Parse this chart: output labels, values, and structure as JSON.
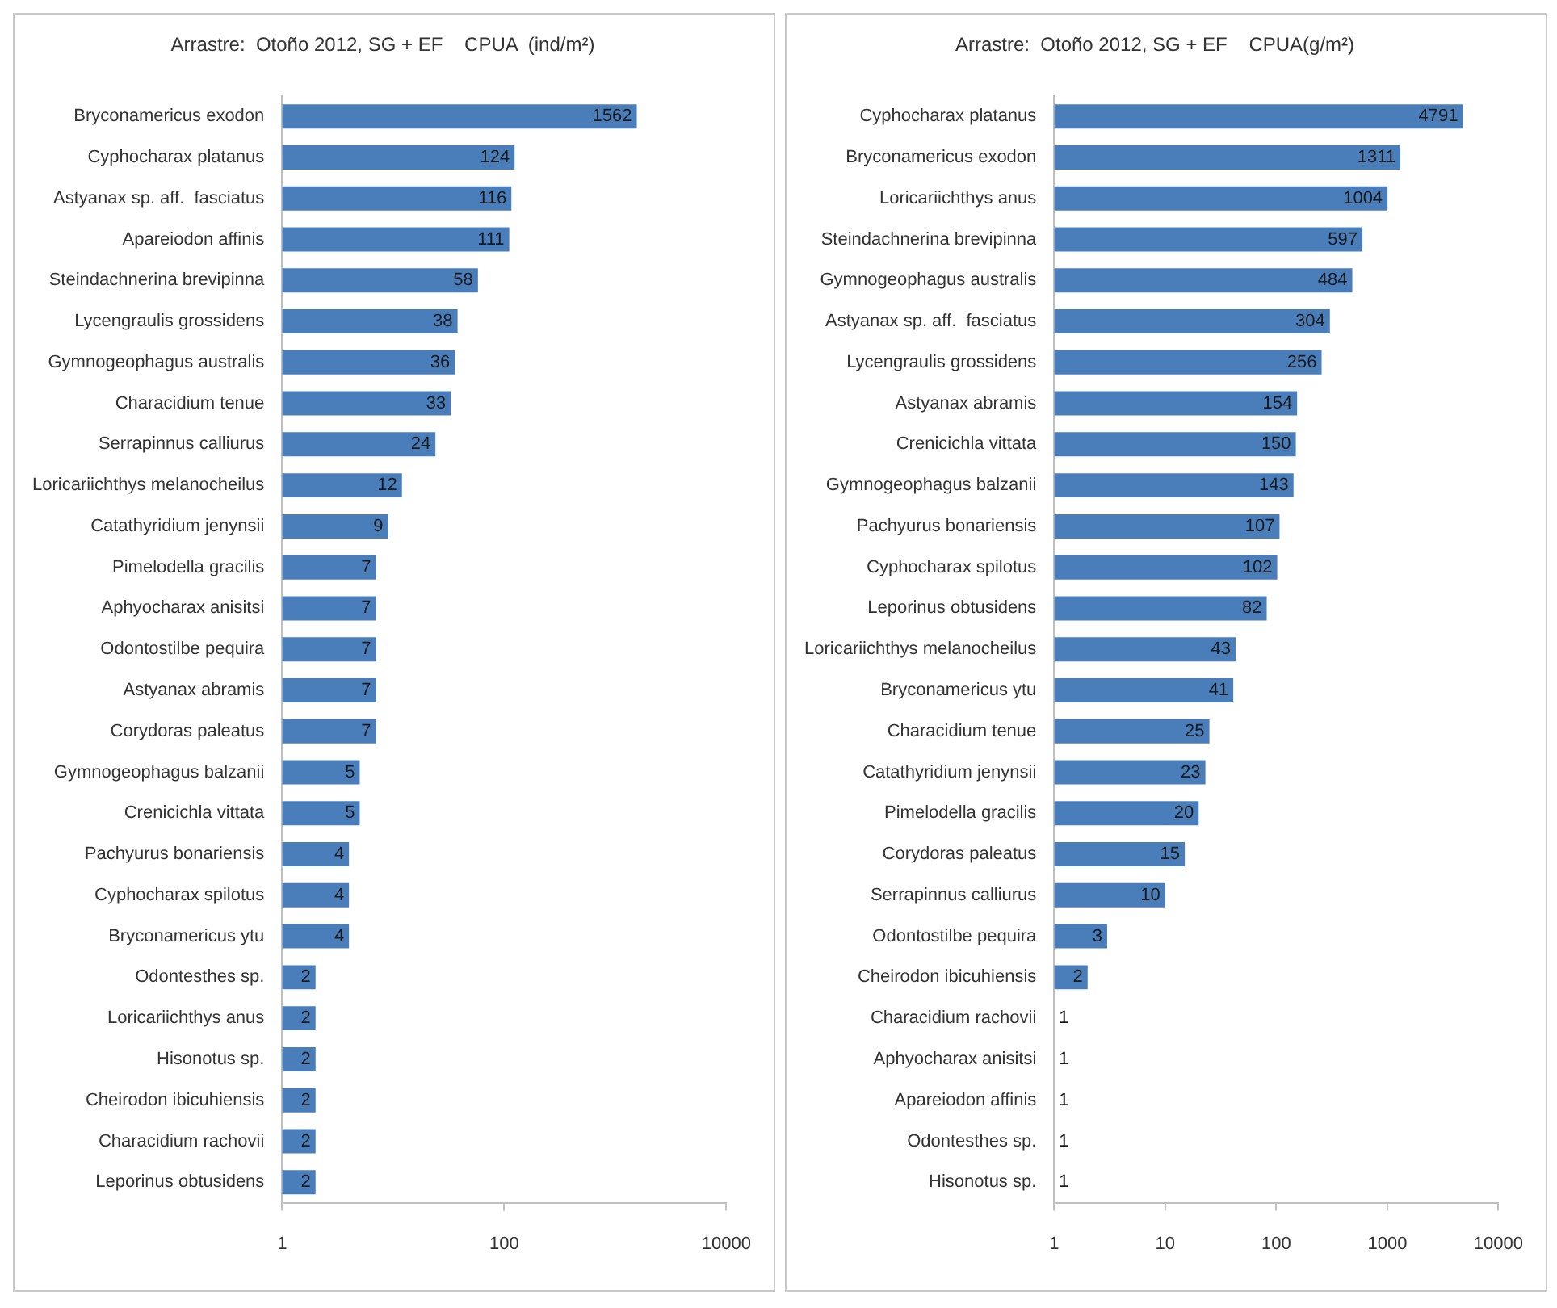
{
  "chart_data": [
    {
      "type": "bar",
      "orientation": "horizontal",
      "log": "x",
      "title": "Arrastre:  Otoño 2012, SG + EF    CPUA  (ind/m²)",
      "categories": [
        "Bryconamericus exodon",
        "Cyphocharax platanus",
        "Astyanax sp. aff.  fasciatus",
        "Apareiodon affinis",
        "Steindachnerina brevipinna",
        "Lycengraulis grossidens",
        "Gymnogeophagus australis",
        "Characidium tenue",
        "Serrapinnus calliurus",
        "Loricariichthys melanocheilus",
        "Catathyridium jenynsii",
        "Pimelodella gracilis",
        "Aphyocharax anisitsi",
        "Odontostilbe pequira",
        "Astyanax abramis",
        "Corydoras paleatus",
        "Gymnogeophagus balzanii",
        "Crenicichla vittata",
        "Pachyurus bonariensis",
        "Cyphocharax spilotus",
        "Bryconamericus ytu",
        "Odontesthes sp.",
        "Loricariichthys anus",
        "Hisonotus sp.",
        "Cheirodon ibicuhiensis",
        "Characidium rachovii",
        "Leporinus obtusidens"
      ],
      "values": [
        1562,
        124,
        116,
        111,
        58,
        38,
        36,
        33,
        24,
        12,
        9,
        7,
        7,
        7,
        7,
        7,
        5,
        5,
        4,
        4,
        4,
        2,
        2,
        2,
        2,
        2,
        2
      ],
      "color": "#4a7ebb",
      "xlim": [
        1,
        10000
      ],
      "xticks": [
        1,
        100,
        10000
      ],
      "data_labels": true
    },
    {
      "type": "bar",
      "orientation": "horizontal",
      "log": "x",
      "title": "Arrastre:  Otoño 2012, SG + EF    CPUA(g/m²)",
      "categories": [
        "Cyphocharax platanus",
        "Bryconamericus exodon",
        "Loricariichthys anus",
        "Steindachnerina brevipinna",
        "Gymnogeophagus australis",
        "Astyanax sp. aff.  fasciatus",
        "Lycengraulis grossidens",
        "Astyanax abramis",
        "Crenicichla vittata",
        "Gymnogeophagus balzanii",
        "Pachyurus bonariensis",
        "Cyphocharax spilotus",
        "Leporinus obtusidens",
        "Loricariichthys melanocheilus",
        "Bryconamericus ytu",
        "Characidium tenue",
        "Catathyridium jenynsii",
        "Pimelodella gracilis",
        "Corydoras paleatus",
        "Serrapinnus calliurus",
        "Odontostilbe pequira",
        "Cheirodon ibicuhiensis",
        "Characidium rachovii",
        "Aphyocharax anisitsi",
        "Apareiodon affinis",
        "Odontesthes sp.",
        "Hisonotus sp."
      ],
      "values": [
        4791,
        1311,
        1004,
        597,
        484,
        304,
        256,
        154,
        150,
        143,
        107,
        102,
        82,
        43,
        41,
        25,
        23,
        20,
        15,
        10,
        3,
        2,
        1,
        1,
        1,
        1,
        1
      ],
      "color": "#4a7ebb",
      "xlim": [
        1,
        10000
      ],
      "xticks": [
        1,
        10,
        100,
        1000,
        10000
      ],
      "data_labels": true
    }
  ]
}
